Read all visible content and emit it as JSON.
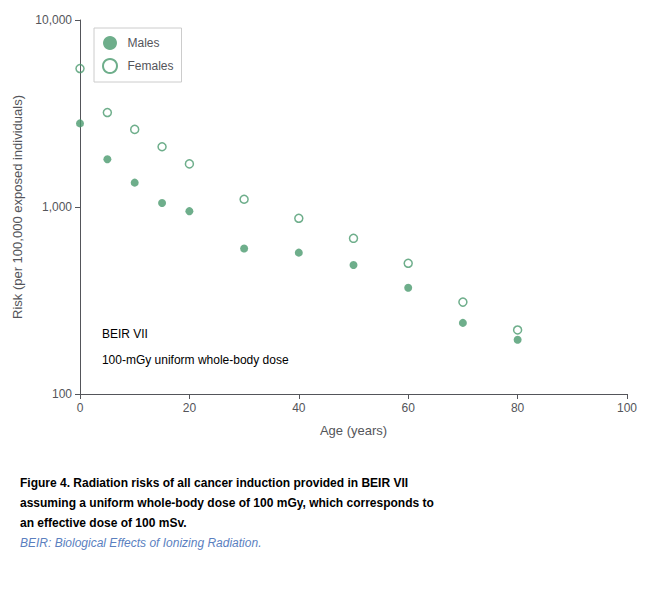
{
  "chart_data": {
    "type": "scatter",
    "xlabel": "Age (years)",
    "ylabel": "Risk (per 100,000 exposed individuals)",
    "series": [
      {
        "name": "Males",
        "color": "#4a9a6e",
        "marker": "circle",
        "x": [
          0,
          5,
          10,
          15,
          20,
          30,
          40,
          50,
          60,
          70,
          80
        ],
        "values": [
          2800,
          1800,
          1350,
          1050,
          950,
          600,
          570,
          490,
          370,
          240,
          195
        ]
      },
      {
        "name": "Females",
        "color": "#4a9a6e",
        "marker": "open_circle",
        "x": [
          0,
          5,
          10,
          15,
          20,
          30,
          40,
          50,
          60,
          70,
          80
        ],
        "values": [
          5500,
          3200,
          2600,
          2100,
          1700,
          1100,
          870,
          680,
          500,
          310,
          220
        ]
      }
    ],
    "xlim": [
      0,
      100
    ],
    "xticks": [
      0,
      20,
      40,
      60,
      80,
      100
    ],
    "ylim": [
      100,
      10000
    ],
    "yticks": [
      100,
      {
        "value": 1000,
        "label": "1,000"
      },
      {
        "value": 10000,
        "label": "10,000"
      }
    ],
    "log": "y",
    "grid": false,
    "legend": "upper left",
    "annotations": [
      "BEIR VII",
      "100-mGy uniform whole-body dose"
    ],
    "caption": [
      "Figure 4. Radiation risks of all cancer induction provided in BEIR VII",
      "assuming a uniform whole-body dose of 100 mGy, which corresponds to",
      "an effective dose of 100 mSv."
    ],
    "caption_note": "BEIR: Biological Effects of Ionizing Radiation.",
    "caption_note_color": "#5b7fbf"
  }
}
